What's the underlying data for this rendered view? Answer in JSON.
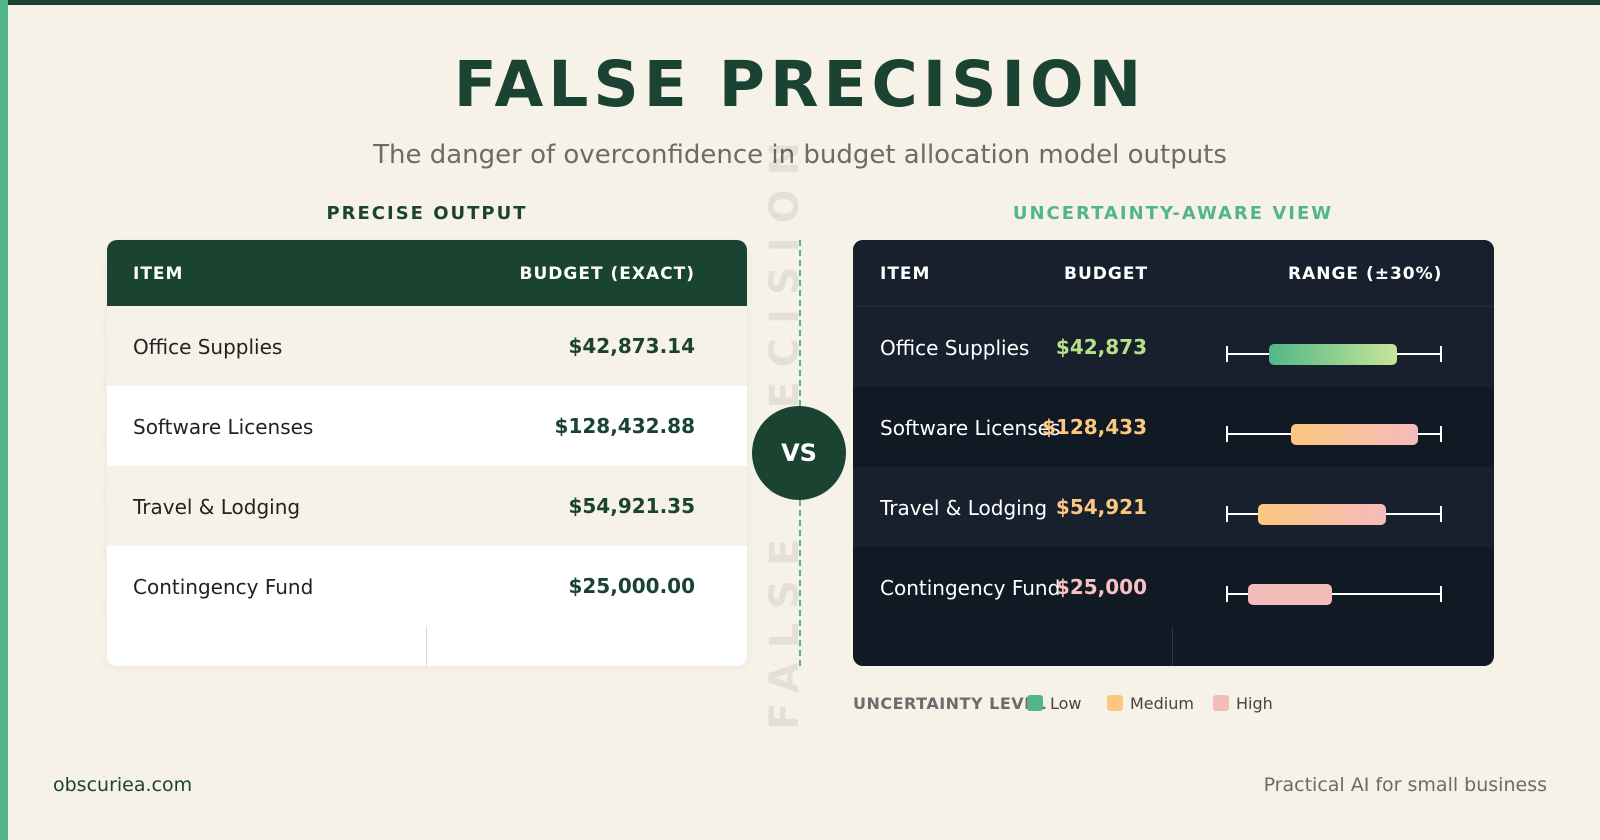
{
  "header": {
    "title": "FALSE PRECISION",
    "subtitle": "The danger of overconfidence in budget allocation model outputs"
  },
  "left": {
    "section_label": "PRECISE OUTPUT",
    "columns": [
      "ITEM",
      "BUDGET (EXACT)"
    ],
    "rows": [
      {
        "item": "Office Supplies",
        "budget": "$42,873.14"
      },
      {
        "item": "Software Licenses",
        "budget": "$128,432.88"
      },
      {
        "item": "Travel & Lodging",
        "budget": "$54,921.35"
      },
      {
        "item": "Contingency Fund",
        "budget": "$25,000.00"
      }
    ]
  },
  "middle": {
    "vs_label": "VS",
    "watermark": "FALSE PRECISION"
  },
  "right": {
    "section_label": "UNCERTAINTY-AWARE VIEW",
    "columns": [
      "ITEM",
      "BUDGET",
      "RANGE (±30%)"
    ],
    "rows": [
      {
        "item": "Office Supplies",
        "budget": "$42,873",
        "level": "low",
        "range_start": 0.2,
        "range_end": 0.79
      },
      {
        "item": "Software Licenses",
        "budget": "$128,433",
        "level": "medium",
        "range_start": 0.3,
        "range_end": 0.89
      },
      {
        "item": "Travel & Lodging",
        "budget": "$54,921",
        "level": "medium",
        "range_start": 0.15,
        "range_end": 0.74
      },
      {
        "item": "Contingency Fund",
        "budget": "$25,000",
        "level": "high",
        "range_start": 0.1,
        "range_end": 0.49
      }
    ]
  },
  "legend": {
    "title": "UNCERTAINTY LEVEL",
    "items": [
      {
        "label": "Low",
        "color": "#52b788"
      },
      {
        "label": "Medium",
        "color": "#fcc77e"
      },
      {
        "label": "High",
        "color": "#f5bcbc"
      }
    ]
  },
  "colors": {
    "primary": "#1b4332",
    "accent": "#52b788",
    "background": "#f7f2e8",
    "dark_panel": "#111a24",
    "low_value": "#b7e08a",
    "medium_value": "#fcc77e",
    "high_value": "#f7c1c1"
  },
  "footer": {
    "left": "obscuriea.com",
    "right": "Practical AI for small business"
  }
}
